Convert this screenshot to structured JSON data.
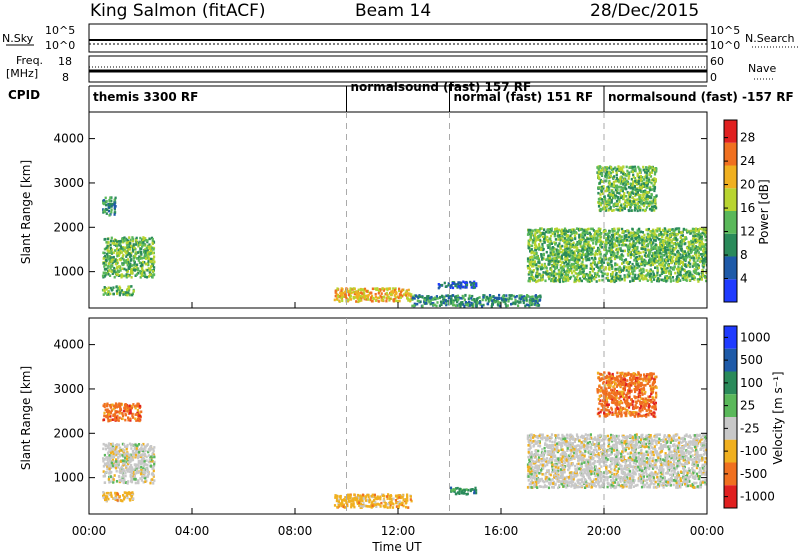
{
  "header": {
    "title": "King Salmon (fitACF)",
    "beam": "Beam 14",
    "date": "28/Dec/2015"
  },
  "top_panels": {
    "nsky_label": "N.Sky",
    "nsky_ticks": [
      "10^5",
      "10^0"
    ],
    "nsearch_label": "N.Search",
    "nsearch_ticks": [
      "10^5",
      "10^0"
    ],
    "freq_label_1": "Freq.",
    "freq_label_2": "[MHz]",
    "freq_ticks": [
      "18",
      "8"
    ],
    "nave_label": "Nave",
    "nave_ticks": [
      "60",
      "0"
    ],
    "cpid_label": "CPID"
  },
  "cpid_segments": [
    {
      "label": "themis 3300 RF",
      "start_hour": 0,
      "end_hour": 10
    },
    {
      "label": "normalsound (fast) 157 RF",
      "start_hour": 10,
      "end_hour": 14
    },
    {
      "label": "normal (fast) 151 RF",
      "start_hour": 14,
      "end_hour": 20
    },
    {
      "label": "normalsound (fast) -157 RF",
      "start_hour": 20,
      "end_hour": 24
    }
  ],
  "chart_data": [
    {
      "type": "heatmap",
      "panel": "power",
      "ylabel": "Slant Range [km]",
      "yticks": [
        "1000",
        "2000",
        "3000",
        "4000"
      ],
      "ylim": [
        180,
        4600
      ],
      "xlim": [
        0,
        24
      ],
      "colorbar_label": "Power [dB]",
      "colorbar_ticks": [
        "4",
        "8",
        "12",
        "16",
        "20",
        "24",
        "28"
      ],
      "colorbar_range": [
        0,
        31
      ],
      "colors": [
        "#1f3bff",
        "#1e5aa8",
        "#2a8a5a",
        "#5ab85a",
        "#b8d430",
        "#f0b020",
        "#f07020",
        "#e02020"
      ],
      "echo_regions": [
        {
          "x": [
            0.5,
            2.5
          ],
          "y": [
            900,
            1800
          ],
          "value": 14
        },
        {
          "x": [
            0.5,
            1.7
          ],
          "y": [
            500,
            700
          ],
          "value": 12
        },
        {
          "x": [
            0.5,
            1.0
          ],
          "y": [
            2300,
            2700
          ],
          "value": 10
        },
        {
          "x": [
            9.5,
            12.5
          ],
          "y": [
            350,
            650
          ],
          "value": 22
        },
        {
          "x": [
            12.5,
            17.5
          ],
          "y": [
            250,
            500
          ],
          "value": 9
        },
        {
          "x": [
            13.5,
            15.0
          ],
          "y": [
            650,
            800
          ],
          "value": 6
        },
        {
          "x": [
            17.0,
            24.0
          ],
          "y": [
            800,
            2000
          ],
          "value": 14
        },
        {
          "x": [
            19.7,
            22.0
          ],
          "y": [
            2400,
            3400
          ],
          "value": 12
        }
      ]
    },
    {
      "type": "heatmap",
      "panel": "velocity",
      "ylabel": "Slant Range [km]",
      "yticks": [
        "1000",
        "2000",
        "3000",
        "4000"
      ],
      "ylim": [
        180,
        4600
      ],
      "xlim": [
        0,
        24
      ],
      "xticks": [
        "00:00",
        "04:00",
        "08:00",
        "12:00",
        "16:00",
        "20:00",
        "00:00"
      ],
      "xlabel": "Time UT",
      "colorbar_label": "Velocity [m s⁻¹]",
      "colorbar_ticks": [
        "1000",
        "500",
        "100",
        "25",
        "-25",
        "-100",
        "-500",
        "-1000"
      ],
      "colors": [
        "#1f3bff",
        "#1e5aa8",
        "#2a8a5a",
        "#5ab85a",
        "#c8c8c8",
        "#f0b020",
        "#f07020",
        "#e02020"
      ],
      "echo_regions": [
        {
          "x": [
            0.5,
            2.5
          ],
          "y": [
            900,
            1800
          ],
          "value": "ground"
        },
        {
          "x": [
            0.5,
            1.7
          ],
          "y": [
            500,
            700
          ],
          "value": "-100"
        },
        {
          "x": [
            0.5,
            2.0
          ],
          "y": [
            2300,
            2700
          ],
          "value": "-500"
        },
        {
          "x": [
            9.5,
            12.5
          ],
          "y": [
            350,
            650
          ],
          "value": "-100"
        },
        {
          "x": [
            14.0,
            15.0
          ],
          "y": [
            650,
            800
          ],
          "value": "100"
        },
        {
          "x": [
            17.0,
            24.0
          ],
          "y": [
            800,
            2000
          ],
          "value": "ground"
        },
        {
          "x": [
            19.7,
            22.0
          ],
          "y": [
            2400,
            3400
          ],
          "value": "-500"
        }
      ]
    }
  ]
}
